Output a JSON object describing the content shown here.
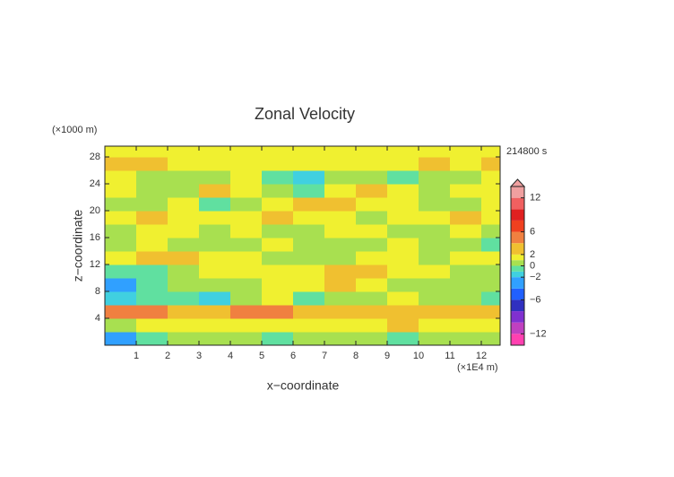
{
  "chart_data": {
    "type": "contour",
    "title": "Zonal Velocity",
    "xlabel": "x−coordinate",
    "ylabel": "z−coordinate",
    "x_unit": "(×1E4 m)",
    "y_unit": "(×1000 m)",
    "time_label": "214800 s",
    "xlim": [
      0,
      12.6
    ],
    "ylim": [
      0,
      29.6
    ],
    "xticks": [
      1,
      2,
      3,
      4,
      5,
      6,
      7,
      8,
      9,
      10,
      11,
      12
    ],
    "yticks": [
      4,
      8,
      12,
      16,
      20,
      24,
      28
    ],
    "x": [
      0.5,
      1.5,
      2.5,
      3.5,
      4.5,
      5.5,
      6.5,
      7.5,
      8.5,
      9.5,
      10.5,
      11.5,
      12.5
    ],
    "y": [
      1,
      3,
      5,
      7,
      9,
      11,
      13,
      15,
      17,
      19,
      21,
      23,
      25,
      27,
      29
    ],
    "z": [
      [
        -3,
        -1,
        0.5,
        0.5,
        0,
        -1,
        0.5,
        0.5,
        0,
        -1,
        0.5,
        0.5,
        0.5
      ],
      [
        0.5,
        1,
        1.5,
        1.5,
        1,
        1.5,
        1.5,
        1.5,
        1.5,
        2,
        1.5,
        1,
        1.5
      ],
      [
        4.5,
        4,
        3,
        3,
        4,
        4,
        3,
        3,
        3,
        3,
        2,
        2,
        3
      ],
      [
        -2,
        -1,
        -1,
        -1.5,
        0.5,
        1,
        -1,
        0.5,
        0.5,
        1,
        0.5,
        0,
        -1
      ],
      [
        -3,
        -1,
        0.5,
        0.5,
        0.5,
        1.5,
        1.5,
        2,
        1,
        0.5,
        0.5,
        0.5,
        0.5
      ],
      [
        -1,
        -1,
        0.5,
        1.5,
        1.5,
        1,
        1.5,
        3,
        2,
        1.5,
        1,
        0.5,
        0.5
      ],
      [
        1.5,
        2,
        3,
        1.5,
        1.5,
        0.5,
        0.5,
        0.5,
        1.5,
        1.5,
        0.5,
        1.5,
        1
      ],
      [
        0.5,
        1.5,
        0.5,
        0.5,
        0.5,
        1.5,
        0.5,
        0.5,
        0.5,
        1.5,
        0.5,
        0.5,
        -1
      ],
      [
        0.5,
        1.5,
        1.5,
        0.5,
        1.5,
        0.5,
        0.5,
        1.5,
        1.5,
        0.5,
        0.5,
        1.5,
        0.5
      ],
      [
        1.5,
        2.5,
        1.5,
        1.5,
        1,
        3,
        1.5,
        1.5,
        0.5,
        1.5,
        1.5,
        2,
        1.5
      ],
      [
        0.5,
        0.5,
        1.5,
        -1,
        0.5,
        1.5,
        2.5,
        3,
        1.5,
        1.5,
        0.5,
        0.5,
        1.5
      ],
      [
        1,
        0.5,
        0.5,
        2.5,
        1.5,
        0.5,
        -1,
        1.5,
        2.5,
        1.5,
        0.5,
        1,
        1.5
      ],
      [
        1.5,
        0.5,
        0.5,
        0.5,
        1.5,
        -1,
        -1.5,
        0.5,
        0.5,
        -1,
        0.5,
        0.5,
        1.5
      ],
      [
        3,
        3,
        1.5,
        1.5,
        1.5,
        1,
        1.5,
        1.5,
        1,
        1.5,
        2,
        1,
        3
      ],
      [
        1.5,
        1.5,
        1.5,
        1.5,
        1.5,
        1.5,
        1.5,
        1.5,
        1.5,
        1.5,
        1.5,
        1.5,
        1.5
      ]
    ],
    "colorbar": {
      "levels": [
        -14,
        -12,
        -10,
        -8,
        -6,
        -4,
        -2,
        -1,
        0,
        1,
        2,
        4,
        6,
        8,
        10,
        12,
        14
      ],
      "colors": [
        "#ff40b0",
        "#c040c0",
        "#8030d0",
        "#3030c0",
        "#2060ff",
        "#30a0ff",
        "#40d0e0",
        "#60e0a0",
        "#a8e050",
        "#f0f030",
        "#f0c030",
        "#f08040",
        "#f04020",
        "#e02020",
        "#f06060",
        "#f0a0a0"
      ],
      "extend": "max",
      "ticks": [
        {
          "value": -12,
          "label": "−12"
        },
        {
          "value": -6,
          "label": "−6"
        },
        {
          "value": -2,
          "label": "−2"
        },
        0,
        2,
        6,
        12
      ]
    }
  }
}
